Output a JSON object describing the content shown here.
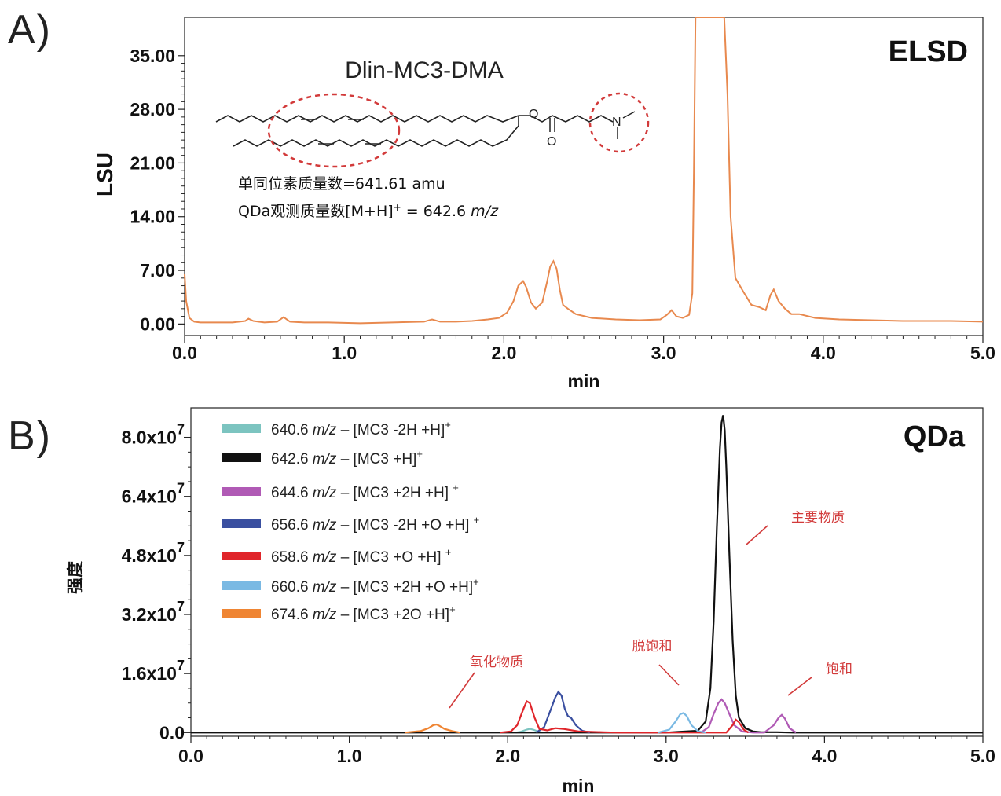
{
  "panel_labels": {
    "a": "A)",
    "b": "B)"
  },
  "chart_data": [
    {
      "type": "line",
      "panel": "A",
      "title": "ELSD",
      "xlabel": "min",
      "ylabel": "LSU",
      "xlim": [
        0,
        5
      ],
      "ylim": [
        -1.5,
        40
      ],
      "xticks": [
        "0.0",
        "1.0",
        "2.0",
        "3.0",
        "4.0",
        "5.0"
      ],
      "xtick_values": [
        0,
        1,
        2,
        3,
        4,
        5
      ],
      "yticks": [
        "0.00",
        "7.00",
        "14.00",
        "21.00",
        "28.00",
        "35.00"
      ],
      "ytick_values": [
        0,
        7,
        14,
        21,
        28,
        35
      ],
      "color": "#e8894e",
      "series": [
        {
          "x": [
            0.0,
            0.01,
            0.03,
            0.06,
            0.1,
            0.2,
            0.3,
            0.38,
            0.4,
            0.43,
            0.5,
            0.58,
            0.62,
            0.66,
            0.75,
            0.9,
            1.1,
            1.3,
            1.5,
            1.55,
            1.6,
            1.7,
            1.8,
            1.9,
            1.97,
            2.02,
            2.06,
            2.09,
            2.12,
            2.14,
            2.17,
            2.2,
            2.24,
            2.27,
            2.29,
            2.31,
            2.33,
            2.35,
            2.37,
            2.4,
            2.45,
            2.55,
            2.7,
            2.85,
            2.98,
            3.02,
            3.05,
            3.08,
            3.12,
            3.16,
            3.18,
            3.19,
            3.2,
            3.22,
            3.3,
            3.38,
            3.4,
            3.42,
            3.45,
            3.5,
            3.55,
            3.6,
            3.64,
            3.67,
            3.69,
            3.72,
            3.76,
            3.8,
            3.85,
            3.95,
            4.1,
            4.3,
            4.5,
            4.8,
            5.0
          ],
          "y": [
            6.5,
            3.0,
            0.8,
            0.3,
            0.2,
            0.2,
            0.2,
            0.4,
            0.7,
            0.4,
            0.2,
            0.3,
            0.9,
            0.3,
            0.2,
            0.2,
            0.1,
            0.2,
            0.3,
            0.6,
            0.3,
            0.3,
            0.4,
            0.6,
            0.8,
            1.5,
            3.0,
            5.0,
            5.6,
            4.8,
            2.8,
            2.0,
            2.8,
            5.5,
            7.5,
            8.2,
            7.2,
            4.5,
            2.5,
            2.0,
            1.3,
            0.8,
            0.6,
            0.5,
            0.6,
            1.2,
            1.8,
            1.0,
            0.8,
            1.2,
            4.0,
            20.0,
            40.0,
            40.0,
            40.0,
            40.0,
            30.0,
            14.0,
            6.0,
            4.2,
            2.5,
            2.2,
            1.8,
            3.8,
            4.5,
            3.0,
            2.0,
            1.3,
            1.3,
            0.8,
            0.6,
            0.5,
            0.4,
            0.4,
            0.3
          ]
        }
      ],
      "molecule": {
        "name": "Dlin-MC3-DMA",
        "atoms": [
          "O",
          "O",
          "N"
        ],
        "info_line1": "单同位素质量数=641.61 amu",
        "info_line2_pre": "QDa观测质量数[M+H]",
        "info_line2_sup": "+",
        "info_line2_post": " = 642.6 ",
        "info_line2_unit": "m/z"
      }
    },
    {
      "type": "line",
      "panel": "B",
      "title": "QDa",
      "xlabel": "min",
      "ylabel": "强度",
      "xlim": [
        0,
        5
      ],
      "ylim": [
        -1000000,
        88000000
      ],
      "xticks": [
        "0.0",
        "1.0",
        "2.0",
        "3.0",
        "4.0",
        "5.0"
      ],
      "xtick_values": [
        0,
        1,
        2,
        3,
        4,
        5
      ],
      "ytick_values": [
        0,
        16000000,
        32000000,
        48000000,
        64000000,
        80000000
      ],
      "yticks": [
        {
          "base": "0.0",
          "exp": ""
        },
        {
          "base": "1.6x10",
          "exp": "7"
        },
        {
          "base": "3.2x10",
          "exp": "7"
        },
        {
          "base": "4.8x10",
          "exp": "7"
        },
        {
          "base": "6.4x10",
          "exp": "7"
        },
        {
          "base": "8.0x10",
          "exp": "7"
        }
      ],
      "series": [
        {
          "name_pre": "640.6 ",
          "name_unit": "m/z",
          "name_post": " – [MC3 -2H +H]",
          "name_sup": "+",
          "color": "#7cc4c0",
          "x": [
            2.05,
            2.08,
            2.12,
            2.14,
            2.16,
            2.2,
            2.22
          ],
          "y": [
            0,
            200000,
            800000,
            1000000,
            800000,
            200000,
            0
          ]
        },
        {
          "name_pre": "642.6 ",
          "name_unit": "m/z",
          "name_post": " – [MC3 +H]",
          "name_sup": "+",
          "color": "#111111",
          "x": [
            0.0,
            3.0,
            3.08,
            3.2,
            3.25,
            3.28,
            3.3,
            3.32,
            3.34,
            3.35,
            3.36,
            3.37,
            3.38,
            3.4,
            3.42,
            3.44,
            3.46,
            3.5,
            3.55,
            3.6,
            3.7,
            3.8,
            5.0
          ],
          "y": [
            0,
            0,
            200000,
            500000,
            3000000,
            12000000,
            30000000,
            55000000,
            77000000,
            84000000,
            86000000,
            82000000,
            72000000,
            48000000,
            25000000,
            10000000,
            4000000,
            1200000,
            300000,
            100000,
            100000,
            0,
            0
          ]
        },
        {
          "name_pre": "644.6 ",
          "name_unit": "m/z",
          "name_post": " – [MC3 +2H +H] ",
          "name_sup": "+",
          "color": "#b05ab5",
          "x": [
            3.22,
            3.27,
            3.3,
            3.33,
            3.35,
            3.37,
            3.4,
            3.43,
            3.48,
            3.55,
            3.62,
            3.68,
            3.71,
            3.73,
            3.75,
            3.78,
            3.82
          ],
          "y": [
            0,
            1500000,
            5000000,
            8000000,
            9000000,
            8000000,
            5000000,
            2000000,
            300000,
            0,
            0,
            2000000,
            4000000,
            4800000,
            3800000,
            1200000,
            0
          ]
        },
        {
          "name_pre": "656.6 ",
          "name_unit": "m/z",
          "name_post": " – [MC3 -2H +O +H] ",
          "name_sup": "+",
          "color": "#3a4fa0",
          "x": [
            2.18,
            2.23,
            2.27,
            2.3,
            2.32,
            2.34,
            2.36,
            2.38,
            2.4,
            2.43,
            2.47,
            2.52
          ],
          "y": [
            0,
            1500000,
            6000000,
            9500000,
            11000000,
            10000000,
            6500000,
            4500000,
            4000000,
            2000000,
            500000,
            0
          ]
        },
        {
          "name_pre": "658.6 ",
          "name_unit": "m/z",
          "name_post": " – [MC3 +O +H] ",
          "name_sup": "+",
          "color": "#e0252a",
          "x": [
            1.95,
            2.02,
            2.06,
            2.1,
            2.12,
            2.14,
            2.17,
            2.2,
            2.25,
            2.3,
            2.35,
            2.45,
            2.6,
            2.7,
            3.38,
            3.42,
            3.44,
            3.46,
            3.49,
            3.52
          ],
          "y": [
            0,
            300000,
            2000000,
            6500000,
            8500000,
            8000000,
            4000000,
            1000000,
            600000,
            1200000,
            1000000,
            300000,
            100000,
            0,
            0,
            2000000,
            3500000,
            2800000,
            800000,
            0
          ]
        },
        {
          "name_pre": "660.6 ",
          "name_unit": "m/z",
          "name_post": " – [MC3 +2H +O +H]",
          "name_sup": "+",
          "color": "#7ab9e3",
          "x": [
            2.95,
            3.02,
            3.06,
            3.09,
            3.11,
            3.13,
            3.16,
            3.2,
            3.25
          ],
          "y": [
            0,
            800000,
            3000000,
            5000000,
            5300000,
            4500000,
            2000000,
            400000,
            0
          ]
        },
        {
          "name_pre": "674.6 ",
          "name_unit": "m/z",
          "name_post": " – [MC3 +2O +H]",
          "name_sup": "+",
          "color": "#ef8533",
          "x": [
            1.35,
            1.45,
            1.5,
            1.53,
            1.55,
            1.57,
            1.6,
            1.65,
            1.7
          ],
          "y": [
            0,
            400000,
            1200000,
            2000000,
            2200000,
            1800000,
            1000000,
            400000,
            0
          ]
        }
      ],
      "annotations": [
        {
          "text": "主要物质",
          "color": "#d23a3a"
        },
        {
          "text": "氧化物质",
          "color": "#d23a3a"
        },
        {
          "text": "脱饱和",
          "color": "#d23a3a"
        },
        {
          "text": "饱和",
          "color": "#d23a3a"
        }
      ]
    }
  ]
}
